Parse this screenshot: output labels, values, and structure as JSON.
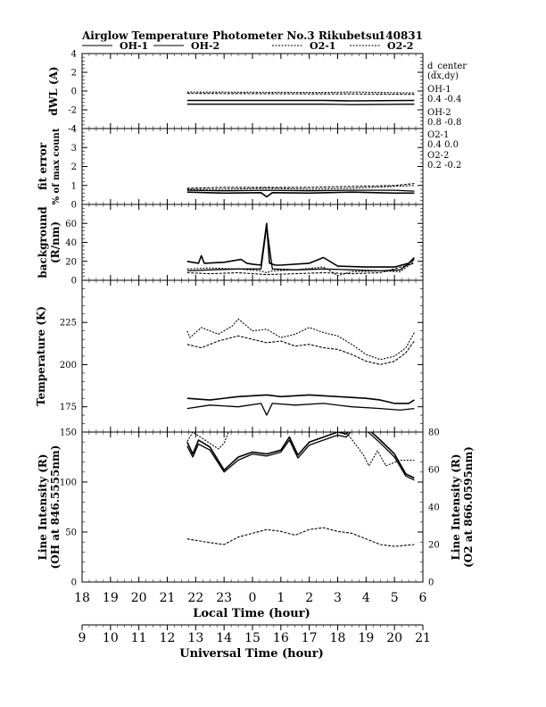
{
  "chart_data": {
    "title": "Airglow Temperature Photometer No.3 Rikubetsu",
    "date_label": "140831",
    "legend": [
      {
        "name": "OH-1",
        "style": "solid"
      },
      {
        "name": "OH-2",
        "style": "solid"
      },
      {
        "name": "O2-1",
        "style": "dotted"
      },
      {
        "name": "O2-2",
        "style": "dotted"
      }
    ],
    "x_axis": {
      "label": "Local Time (hour)",
      "ticks": [
        "18",
        "19",
        "20",
        "21",
        "22",
        "23",
        "0",
        "1",
        "2",
        "3",
        "4",
        "5",
        "6"
      ],
      "range": [
        18,
        30
      ]
    },
    "x_axis_secondary": {
      "label": "Universal Time (hour)",
      "ticks": [
        "9",
        "10",
        "11",
        "12",
        "13",
        "14",
        "15",
        "16",
        "17",
        "18",
        "19",
        "20",
        "21"
      ],
      "range": [
        9,
        21
      ]
    },
    "annotations": {
      "header": "d_center",
      "header_sub": "(dx,dy)",
      "rows": [
        {
          "name": "OH-1",
          "value": "0.4   -0.4"
        },
        {
          "name": "OH-2",
          "value": "0.8   -0.8"
        },
        {
          "name": "O2-1",
          "value": "0.4   0.0"
        },
        {
          "name": "O2-2",
          "value": "0.2   -0.2"
        }
      ]
    },
    "panels": [
      {
        "id": "dwl",
        "type": "line",
        "ylabel": "dWL (A)",
        "ylim": [
          -4,
          4
        ],
        "yticks": [
          "-4",
          "-2",
          "0",
          "2",
          "4"
        ],
        "series": [
          {
            "name": "OH-1",
            "x": [
              21.7,
              26.5,
              27.5,
              29.7
            ],
            "y": [
              -1.0,
              -1.0,
              -1.05,
              -1.0
            ]
          },
          {
            "name": "OH-2",
            "x": [
              21.7,
              26.5,
              27.5,
              29.7
            ],
            "y": [
              -1.4,
              -1.4,
              -1.45,
              -1.4
            ]
          },
          {
            "name": "O2-1",
            "x": [
              21.7,
              26.5,
              27.5,
              29.7
            ],
            "y": [
              -0.1,
              -0.15,
              -0.1,
              -0.2
            ]
          },
          {
            "name": "O2-2",
            "x": [
              21.7,
              26.5,
              27.5,
              29.7
            ],
            "y": [
              -0.25,
              -0.3,
              -0.3,
              -0.35
            ]
          }
        ]
      },
      {
        "id": "fit",
        "type": "line",
        "ylabel": "fit error",
        "ylabel2": "% of max count",
        "ylim": [
          0,
          4
        ],
        "yticks": [
          "0",
          "1",
          "2",
          "3",
          "4"
        ],
        "series": [
          {
            "name": "OH-1",
            "x": [
              21.7,
              23,
              24.3,
              24.5,
              24.7,
              26,
              27.5,
              29,
              29.7
            ],
            "y": [
              0.65,
              0.6,
              0.62,
              0.4,
              0.62,
              0.6,
              0.65,
              0.6,
              0.6
            ]
          },
          {
            "name": "OH-2",
            "x": [
              21.7,
              23,
              24.5,
              26,
              27.5,
              29,
              29.7
            ],
            "y": [
              0.75,
              0.72,
              0.75,
              0.72,
              0.75,
              0.75,
              0.7
            ]
          },
          {
            "name": "O2-1",
            "x": [
              21.7,
              23,
              24.5,
              26,
              27.5,
              29,
              29.7
            ],
            "y": [
              0.8,
              0.8,
              0.85,
              0.8,
              0.85,
              0.95,
              1.0
            ]
          },
          {
            "name": "O2-2",
            "x": [
              21.7,
              23,
              24.5,
              26,
              27.5,
              29,
              29.7
            ],
            "y": [
              0.85,
              0.9,
              0.9,
              0.9,
              0.95,
              1.0,
              1.1
            ]
          }
        ]
      },
      {
        "id": "bg",
        "type": "line",
        "ylabel": "background",
        "ylabel2": "(R/nm)",
        "ylim": [
          0,
          80
        ],
        "yticks": [
          "0",
          "20",
          "40",
          "60"
        ],
        "series": [
          {
            "name": "OH-1",
            "x": [
              21.7,
              22.1,
              22.2,
              22.3,
              23,
              23.6,
              23.8,
              24,
              24.3,
              24.5,
              24.6,
              24.8,
              25,
              26,
              26.5,
              27,
              28,
              29,
              29.5,
              29.7
            ],
            "y": [
              20,
              18,
              26,
              18,
              19,
              22,
              18,
              17,
              16,
              60,
              18,
              16,
              16,
              18,
              24,
              15,
              14,
              14,
              18,
              24
            ]
          },
          {
            "name": "OH-2",
            "x": [
              21.7,
              22.5,
              23.5,
              24.3,
              24.5,
              24.7,
              25.5,
              26.5,
              27.5,
              28.5,
              29.2,
              29.7
            ],
            "y": [
              10,
              11,
              12,
              12,
              57,
              12,
              11,
              12,
              11,
              10,
              11,
              22
            ]
          },
          {
            "name": "O2-1",
            "x": [
              21.7,
              22.5,
              23.5,
              24.3,
              24.5,
              24.7,
              25.5,
              26.5,
              27,
              27.5,
              28.5,
              29.2,
              29.7
            ],
            "y": [
              12,
              13,
              12,
              10,
              8,
              10,
              11,
              14,
              5,
              9,
              10,
              9,
              20
            ]
          },
          {
            "name": "O2-2",
            "x": [
              21.7,
              22.5,
              23.5,
              24.5,
              25.5,
              26.5,
              27.5,
              28.5,
              29.7
            ],
            "y": [
              8,
              7,
              8,
              6,
              7,
              8,
              7,
              8,
              18
            ]
          }
        ]
      },
      {
        "id": "temp",
        "type": "line",
        "ylabel": "Temperature (K)",
        "ylim": [
          160,
          250
        ],
        "yticks": [
          "175",
          "200",
          "225"
        ],
        "series": [
          {
            "name": "OH-1",
            "x": [
              21.7,
              22.5,
              23.5,
              24.5,
              25,
              26,
              27,
              28,
              28.5,
              29,
              29.5,
              29.7
            ],
            "y": [
              180,
              179,
              181,
              182,
              181,
              182,
              181,
              180,
              179,
              177,
              177,
              179
            ]
          },
          {
            "name": "OH-2",
            "x": [
              21.7,
              22.5,
              23.5,
              24.3,
              24.5,
              24.7,
              25.5,
              26.5,
              27.5,
              28.5,
              29.2,
              29.7
            ],
            "y": [
              174,
              176,
              175,
              177,
              170,
              177,
              176,
              177,
              175,
              174,
              173,
              174
            ]
          },
          {
            "name": "O2-1",
            "x": [
              21.7,
              21.8,
              22.2,
              22.8,
              23.3,
              23.5,
              24,
              24.5,
              25,
              25.5,
              26,
              26.5,
              27,
              27.5,
              28,
              28.5,
              29,
              29.4,
              29.7
            ],
            "y": [
              220,
              216,
              222,
              218,
              223,
              227,
              220,
              221,
              216,
              218,
              222,
              219,
              217,
              212,
              206,
              203,
              205,
              210,
              219
            ]
          },
          {
            "name": "O2-2",
            "x": [
              21.7,
              22.2,
              22.8,
              23.5,
              24,
              24.5,
              25,
              25.5,
              26,
              26.5,
              27,
              27.5,
              28,
              28.5,
              29,
              29.4,
              29.7
            ],
            "y": [
              212,
              210,
              214,
              217,
              215,
              213,
              214,
              211,
              212,
              210,
              209,
              206,
              202,
              200,
              202,
              207,
              214
            ]
          }
        ]
      },
      {
        "id": "int",
        "type": "line",
        "ylabel": "Line Intensity (R)",
        "ylabel2": "(OH at 846.5555nm)",
        "ylabel_right": "Line Intensity (R)",
        "ylabel_right2": "(O2 at 866.0595nm)",
        "ylim": [
          0,
          150
        ],
        "yticks": [
          "0",
          "50",
          "100",
          "150"
        ],
        "ylim_right": [
          0,
          80
        ],
        "yticks_right": [
          "0",
          "20",
          "40",
          "60",
          "80"
        ],
        "series": [
          {
            "name": "OH-1",
            "axis": "left",
            "x": [
              21.7,
              21.9,
              22.1,
              22.5,
              23,
              23.5,
              24,
              24.5,
              25,
              25.3,
              25.6,
              26,
              26.5,
              27,
              27.3,
              27.6,
              28,
              28.5,
              29,
              29.4,
              29.7
            ],
            "y": [
              140,
              128,
              142,
              135,
              112,
              125,
              130,
              128,
              132,
              145,
              127,
              140,
              145,
              150,
              148,
              158,
              155,
              142,
              128,
              108,
              104
            ]
          },
          {
            "name": "OH-2",
            "axis": "left",
            "x": [
              21.7,
              21.9,
              22.1,
              22.5,
              23,
              23.5,
              24,
              24.5,
              25,
              25.3,
              25.6,
              26,
              26.5,
              27,
              27.3,
              27.6,
              28,
              28.5,
              29,
              29.4,
              29.7
            ],
            "y": [
              136,
              125,
              138,
              132,
              110,
              122,
              128,
              126,
              130,
              142,
              124,
              137,
              142,
              147,
              145,
              155,
              152,
              139,
              125,
              106,
              102
            ]
          },
          {
            "name": "O2-1",
            "axis": "right",
            "x": [
              21.7,
              21.9,
              22.1,
              22.5,
              22.8,
              23,
              23.2,
              27.2,
              27.5,
              27.7,
              27.9,
              28.1,
              28.4,
              28.7,
              29.2,
              29.7
            ],
            "y": [
              75,
              80,
              78,
              74,
              71,
              74,
              82,
              82,
              76,
              72,
              68,
              62,
              70,
              62,
              65,
              65
            ]
          },
          {
            "name": "O2-2",
            "axis": "right",
            "x": [
              21.7,
              22.5,
              23,
              23.5,
              24,
              24.5,
              25,
              25.5,
              26,
              26.5,
              27,
              27.5,
              28,
              28.5,
              29,
              29.7
            ],
            "y": [
              23,
              21,
              20,
              24,
              26,
              28,
              27,
              25,
              28,
              29,
              27,
              26,
              23,
              20,
              19,
              20
            ]
          }
        ]
      }
    ]
  }
}
